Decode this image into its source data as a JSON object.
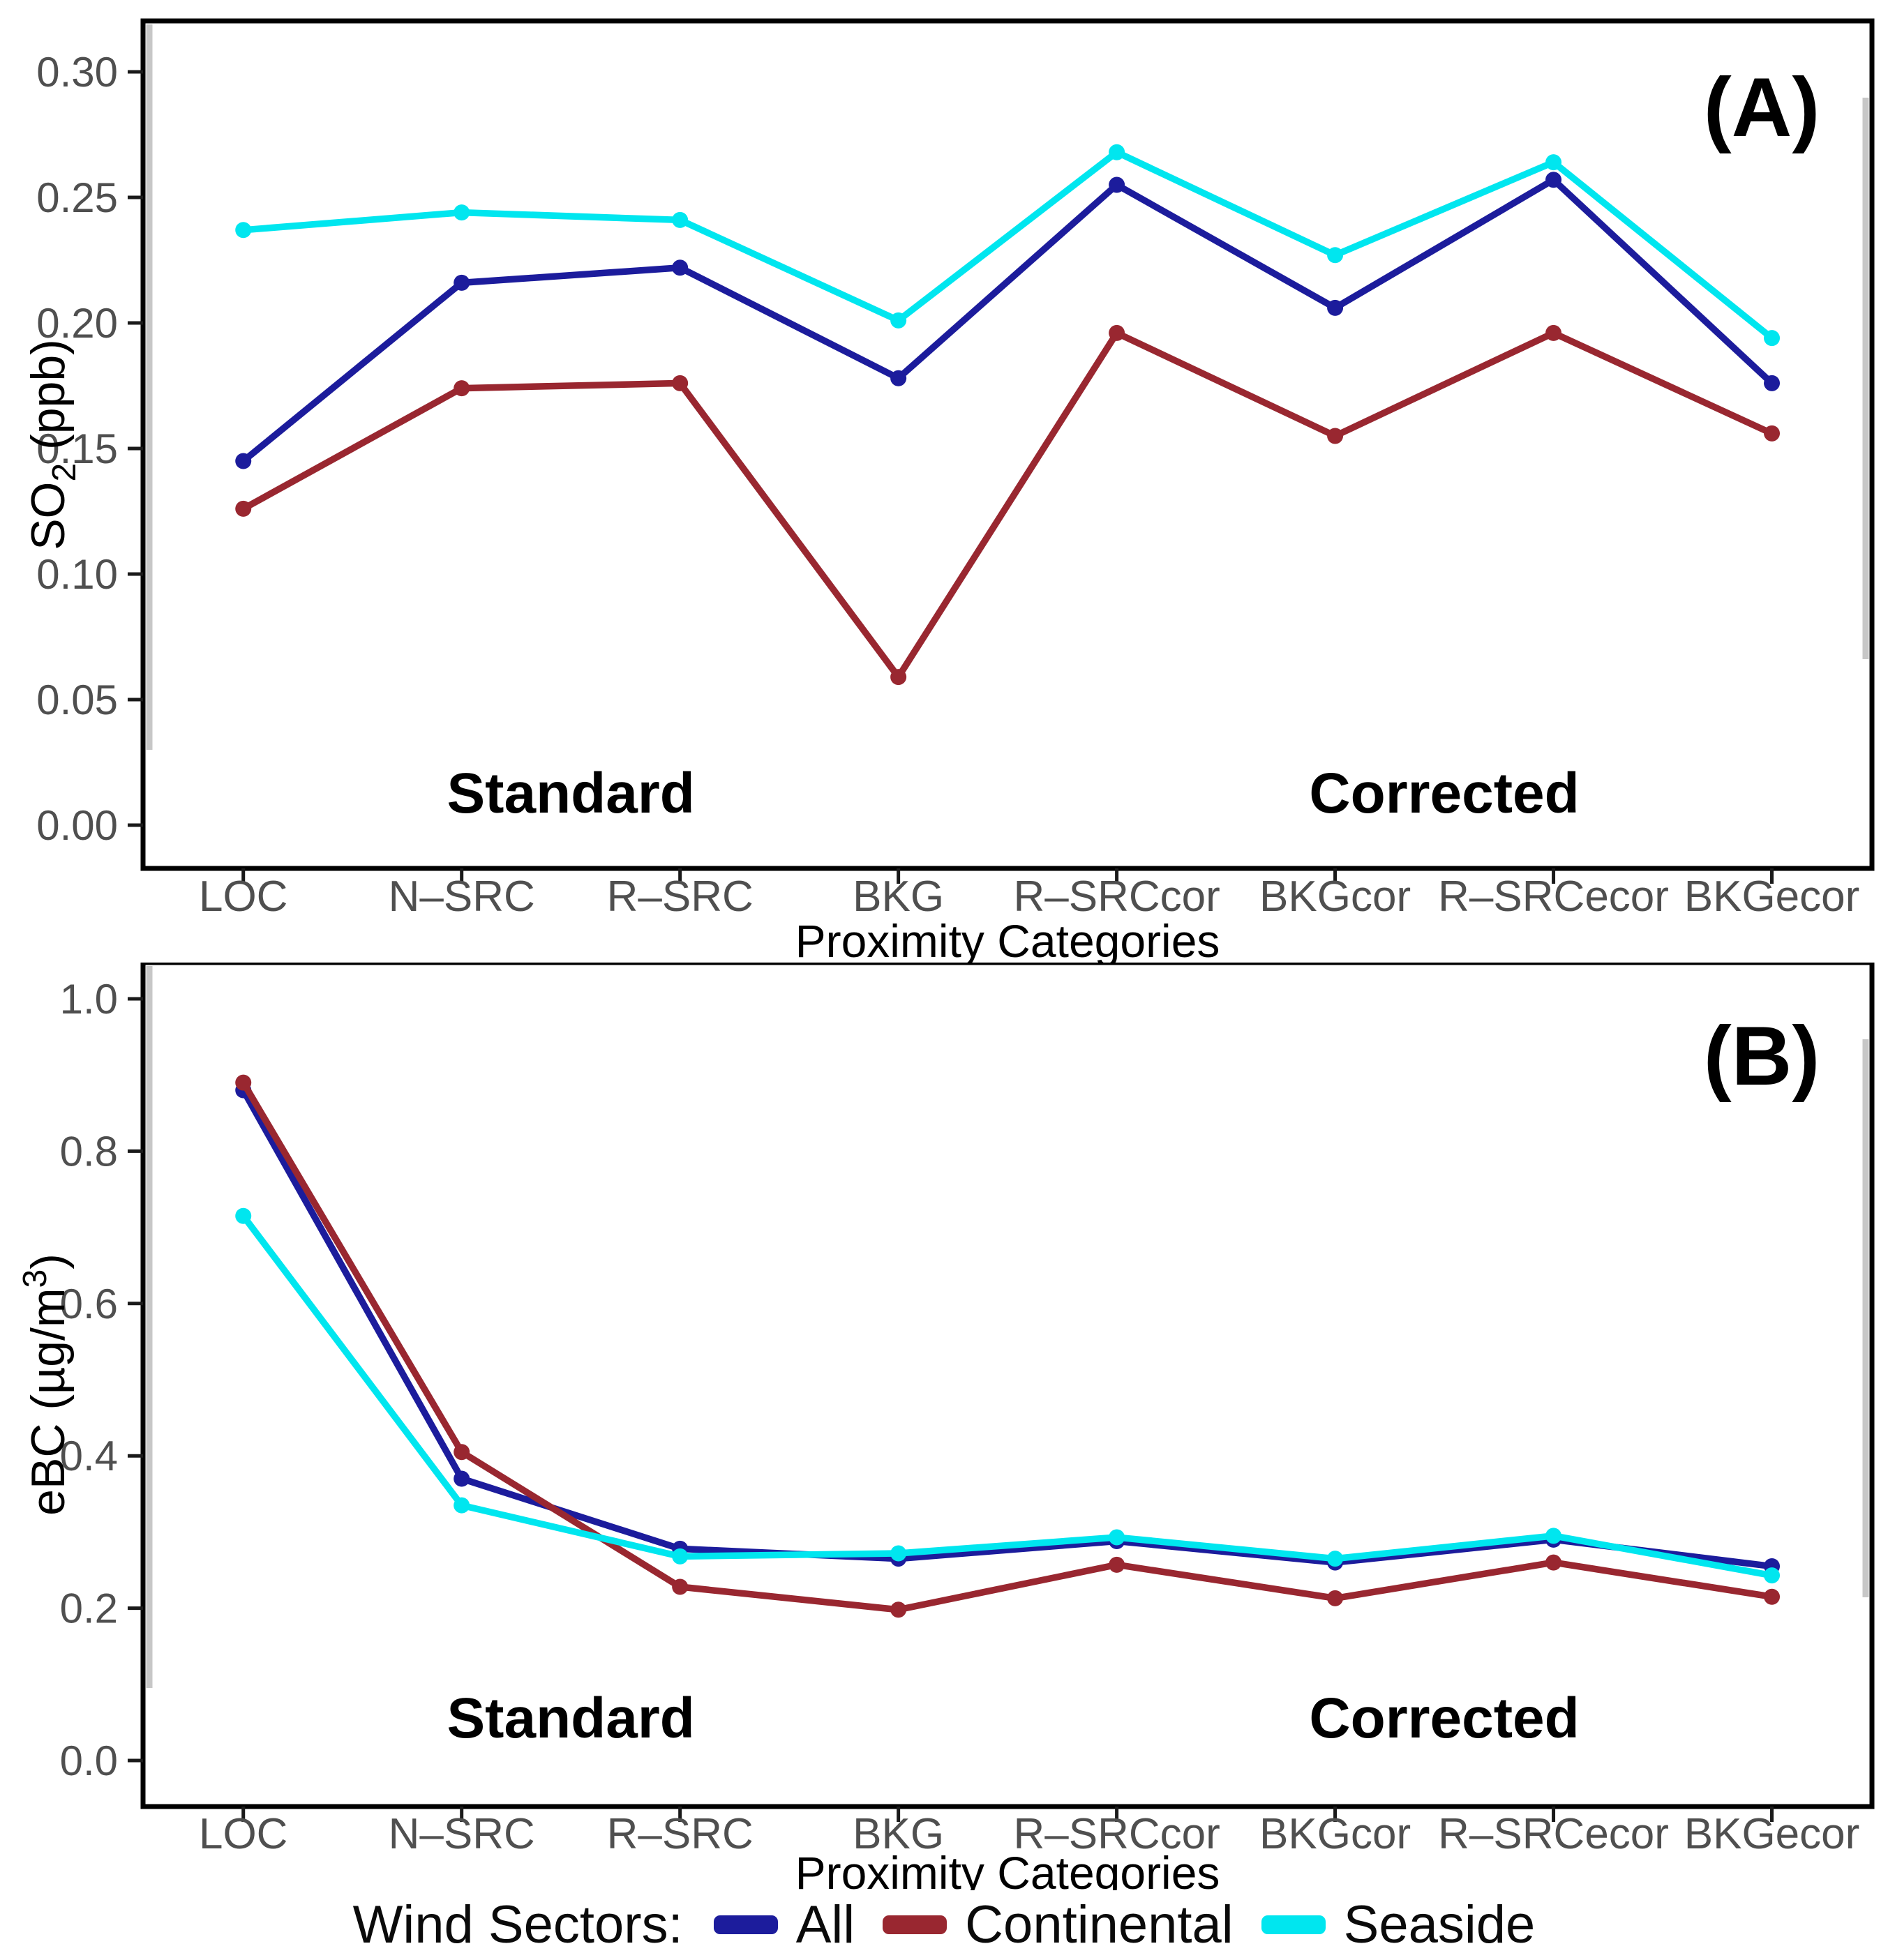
{
  "figure": {
    "legend": {
      "title": "Wind Sectors:",
      "items": [
        {
          "label": "All",
          "color": "#1c1c9c"
        },
        {
          "label": "Continental",
          "color": "#992730"
        },
        {
          "label": "Seaside",
          "color": "#00e6ef"
        }
      ]
    }
  },
  "chart_data": [
    {
      "type": "line",
      "panel_label": "(A)",
      "xlabel": "Proximity Categories",
      "ylabel": "SO2 (ppb)",
      "ylabel_rich": [
        [
          "SO",
          ""
        ],
        [
          "2",
          "sub"
        ],
        [
          " (ppb)",
          ""
        ]
      ],
      "categories": [
        "LOC",
        "N–SRC",
        "R–SRC",
        "BKG",
        "R–SRCcor",
        "BKGcor",
        "R–SRCecor",
        "BKGecor"
      ],
      "ylim": [
        0,
        0.3
      ],
      "yticks": [
        0,
        0.05,
        0.1,
        0.15,
        0.2,
        0.25,
        0.3
      ],
      "ytick_labels": [
        "0.00",
        "0.05",
        "0.10",
        "0.15",
        "0.20",
        "0.25",
        "0.30"
      ],
      "grid": false,
      "legend_position": "shared-bottom",
      "annotations": [
        {
          "text": "Standard",
          "between": [
            "N–SRC",
            "R–SRC"
          ],
          "y": 0.005
        },
        {
          "text": "Corrected",
          "between": [
            "BKGcor",
            "R–SRCecor"
          ],
          "y": 0.005
        }
      ],
      "series": [
        {
          "name": "All",
          "color": "#1c1c9c",
          "values": [
            0.145,
            0.216,
            0.222,
            0.178,
            0.255,
            0.206,
            0.257,
            0.176
          ]
        },
        {
          "name": "Continental",
          "color": "#992730",
          "values": [
            0.126,
            0.174,
            0.176,
            0.059,
            0.196,
            0.155,
            0.196,
            0.156
          ]
        },
        {
          "name": "Seaside",
          "color": "#00e6ef",
          "values": [
            0.237,
            0.244,
            0.241,
            0.201,
            0.268,
            0.227,
            0.264,
            0.194
          ]
        }
      ]
    },
    {
      "type": "line",
      "panel_label": "(B)",
      "xlabel": "Proximity Categories",
      "ylabel": "eBC (µg/m3)",
      "ylabel_rich": [
        [
          "eBC (µg/m",
          ""
        ],
        [
          "3",
          "sup"
        ],
        [
          ")",
          ""
        ]
      ],
      "categories": [
        "LOC",
        "N–SRC",
        "R–SRC",
        "BKG",
        "R–SRCcor",
        "BKGcor",
        "R–SRCecor",
        "BKGecor"
      ],
      "ylim": [
        0,
        1.0
      ],
      "yticks": [
        0,
        0.2,
        0.4,
        0.6,
        0.8,
        1.0
      ],
      "ytick_labels": [
        "0.0",
        "0.2",
        "0.4",
        "0.6",
        "0.8",
        "1.0"
      ],
      "grid": false,
      "legend_position": "shared-bottom",
      "annotations": [
        {
          "text": "Standard",
          "between": [
            "N–SRC",
            "R–SRC"
          ],
          "y": 0.03
        },
        {
          "text": "Corrected",
          "between": [
            "BKGcor",
            "R–SRCecor"
          ],
          "y": 0.03
        }
      ],
      "series": [
        {
          "name": "All",
          "color": "#1c1c9c",
          "values": [
            0.88,
            0.37,
            0.278,
            0.265,
            0.288,
            0.26,
            0.29,
            0.255
          ]
        },
        {
          "name": "Continental",
          "color": "#992730",
          "values": [
            0.89,
            0.405,
            0.228,
            0.198,
            0.257,
            0.213,
            0.26,
            0.215
          ]
        },
        {
          "name": "Seaside",
          "color": "#00e6ef",
          "values": [
            0.715,
            0.335,
            0.268,
            0.272,
            0.293,
            0.265,
            0.295,
            0.243
          ]
        }
      ]
    }
  ]
}
